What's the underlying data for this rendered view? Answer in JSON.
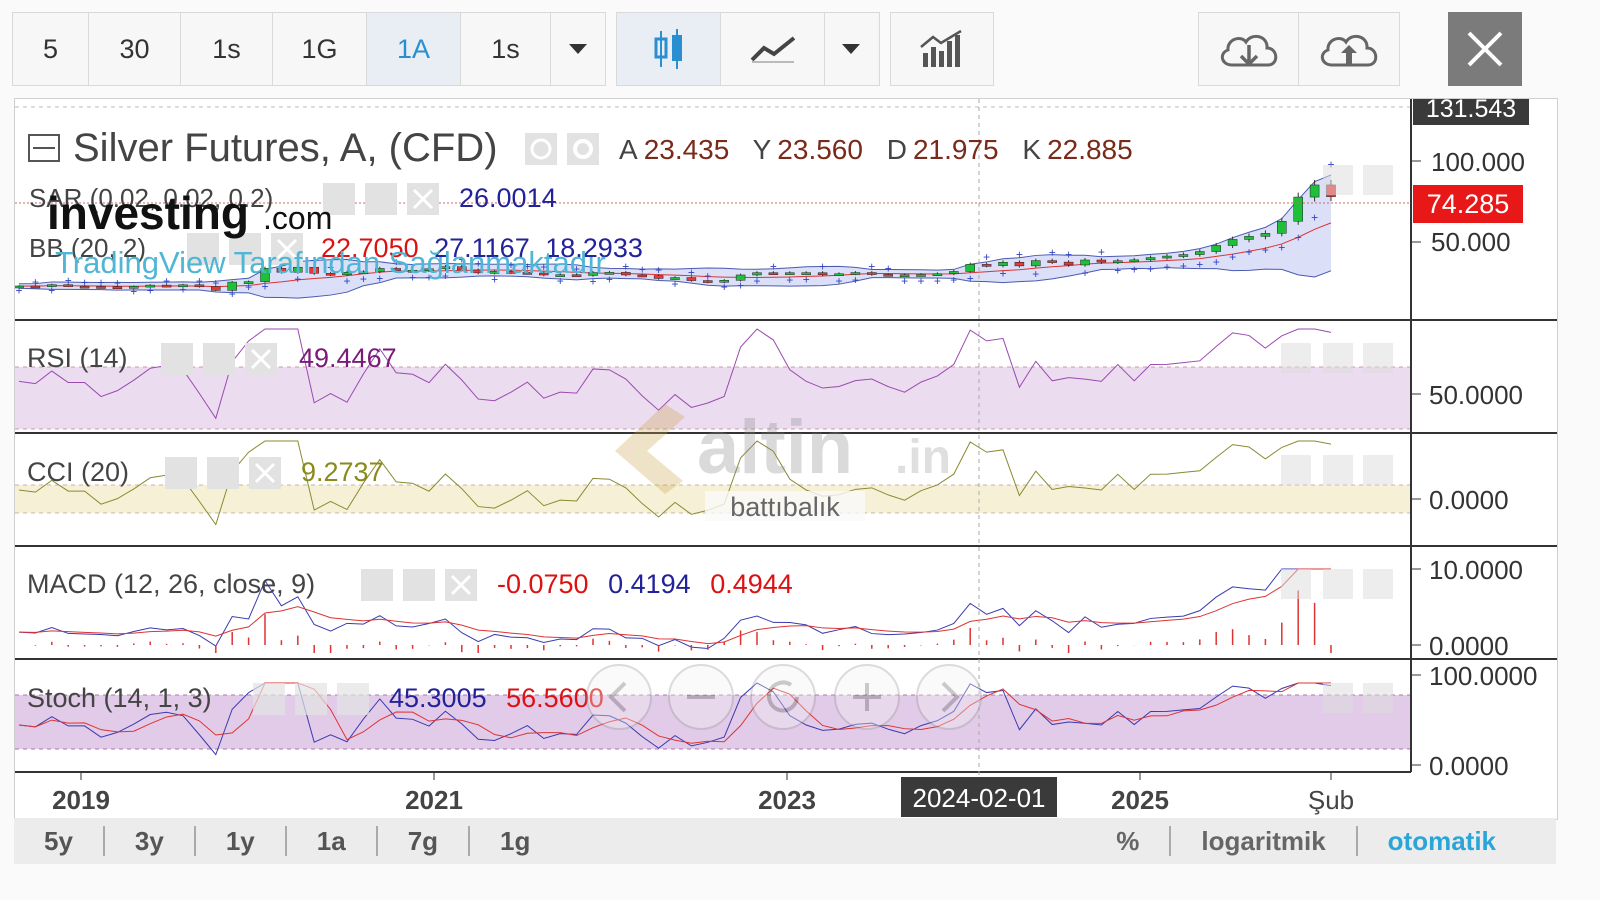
{
  "toolbar": {
    "intervals": [
      "5",
      "30",
      "1s",
      "1G",
      "1A",
      "1s"
    ],
    "active_interval": "1A"
  },
  "price_panel": {
    "title": "Silver Futures, A, (CFD)",
    "ohlc": [
      {
        "label": "A",
        "value": "23.435"
      },
      {
        "label": "Y",
        "value": "23.560"
      },
      {
        "label": "D",
        "value": "21.975"
      },
      {
        "label": "K",
        "value": "22.885"
      }
    ],
    "sar": {
      "label": "SAR (0.02, 0.02, 0.2)",
      "value": "26.0014"
    },
    "bb": {
      "label": "BB (20, 2)",
      "values": [
        "22.7050",
        "27.1167",
        "18.2933"
      ]
    },
    "watermark_brand": "investing",
    "watermark_suffix": ".com",
    "watermark_sub": "TradingView Tarafından Sağlanmaktadır",
    "axis_ticks": [
      "131.543",
      "100.000",
      "50.000"
    ],
    "last_price": "74.285"
  },
  "rsi_panel": {
    "label": "RSI (14)",
    "value": "49.4467",
    "tick": "50.0000"
  },
  "cci_panel": {
    "label": "CCI (20)",
    "value": "9.2737",
    "tick": "0.0000"
  },
  "macd_panel": {
    "label": "MACD (12, 26, close, 9)",
    "values": [
      "-0.0750",
      "0.4194",
      "0.4944"
    ],
    "ticks": [
      "10.0000",
      "0.0000"
    ]
  },
  "stoch_panel": {
    "label": "Stoch (14, 1, 3)",
    "values": [
      "45.3005",
      "56.5600"
    ],
    "ticks": [
      "100.0000",
      "0.0000"
    ]
  },
  "center_watermark": {
    "brand": "altin",
    "suffix": ".in",
    "sub": "battıbalık"
  },
  "x_axis": {
    "ticks": [
      "2019",
      "2021",
      "2023",
      "2025",
      "Şub"
    ],
    "cursor_label": "2024-02-01"
  },
  "bottom_bar": {
    "ranges": [
      "5y",
      "3y",
      "1y",
      "1a",
      "7g",
      "1g"
    ],
    "options": [
      "%",
      "logaritmik",
      "otomatik"
    ],
    "active_option": "otomatik"
  },
  "colors": {
    "up": "#1fbf3a",
    "down": "#e53935",
    "bb_fill": "#cfd6f5",
    "osc_fill": "#ecdcef",
    "cci_fill": "#f6f1d6",
    "accent": "#2a8fd0"
  },
  "chart_data": [
    {
      "type": "candlestick",
      "title": "Silver Futures, A, (CFD)",
      "x_ticks": [
        "2019",
        "2021",
        "2023",
        "2025",
        "Şub"
      ],
      "ylim": [
        0,
        131.543
      ],
      "y_ticks": [
        50,
        100,
        131.543
      ],
      "series": [
        {
          "name": "close",
          "values": [
            15.2,
            15.0,
            16.1,
            15.1,
            14.9,
            14.7,
            14.3,
            15.0,
            15.8,
            15.6,
            16.0,
            14.7,
            12.3,
            17.8,
            18.1,
            26.9,
            24.3,
            27.6,
            23.6,
            22.6,
            24.3,
            24.6,
            26.8,
            25.5,
            25.6,
            26.6,
            28.0,
            25.8,
            23.9,
            24.9,
            24.2,
            23.8,
            22.5,
            22.7,
            22.2,
            24.1,
            24.2,
            22.5,
            22.1,
            20.2,
            20.8,
            18.8,
            17.7,
            19.0,
            22.5,
            24.0,
            23.5,
            24.0,
            24.0,
            22.6,
            23.3,
            24.1,
            22.9,
            22.6,
            22.6,
            22.8,
            23.3,
            24.8,
            29.5,
            28.7,
            30.9,
            28.5,
            32.0,
            31.0,
            29.1,
            32.4,
            31.0,
            31.9,
            32.5,
            34.0,
            35.0,
            36.0,
            38.0,
            42.0,
            46.0,
            48.0,
            50.0,
            58.0,
            74.0,
            82.0,
            74.285
          ]
        }
      ]
    },
    {
      "type": "line",
      "title": "RSI (14)",
      "latest": 49.4467,
      "y_ticks": [
        50
      ]
    },
    {
      "type": "line",
      "title": "CCI (20)",
      "latest": 9.2737,
      "y_ticks": [
        0
      ]
    },
    {
      "type": "line",
      "title": "MACD (12, 26, close, 9)",
      "latest": [
        -0.075,
        0.4194,
        0.4944
      ],
      "y_ticks": [
        0,
        10
      ]
    },
    {
      "type": "line",
      "title": "Stoch (14, 1, 3)",
      "latest": [
        45.3005,
        56.56
      ],
      "y_ticks": [
        0,
        100
      ]
    }
  ]
}
